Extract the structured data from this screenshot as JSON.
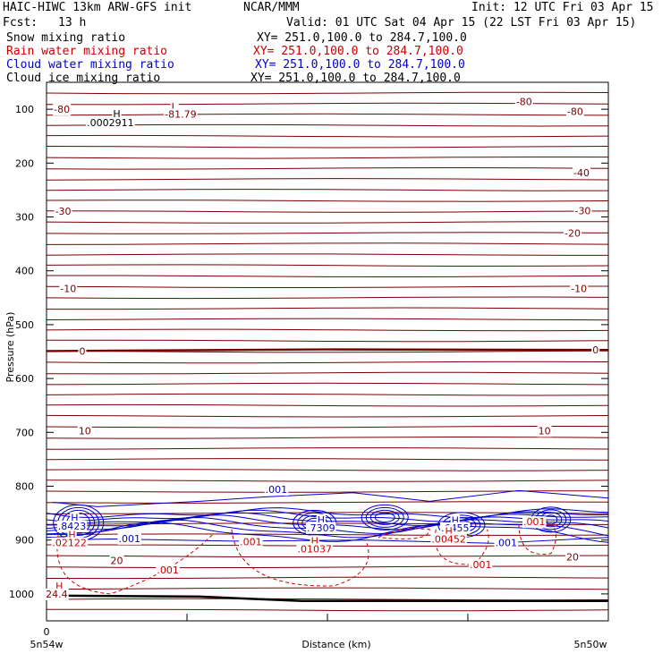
{
  "header": {
    "title": "HAIC-HIWC 13km ARW-GFS init",
    "org": "NCAR/MMM",
    "init": "Init: 12 UTC Fri 03 Apr 15",
    "fcst_label": "Fcst:",
    "fcst_value": "13 h",
    "valid": "Valid: 01 UTC Sat 04 Apr 15 (22 LST Fri 03 Apr 15)"
  },
  "fields": [
    {
      "name": "Snow mixing ratio",
      "xy": "XY= 251.0,100.0 to 284.7,100.0",
      "color": "#000000"
    },
    {
      "name": "Rain water mixing ratio",
      "xy": "XY= 251.0,100.0 to 284.7,100.0",
      "color": "#cc0000"
    },
    {
      "name": "Cloud water mixing ratio",
      "xy": "XY= 251.0,100.0 to 284.7,100.0",
      "color": "#0000cc"
    },
    {
      "name": "Cloud ice mixing ratio",
      "xy": "XY= 251.0,100.0 to 284.7,100.0",
      "color": "#000000"
    }
  ],
  "chart_data": {
    "type": "contour-cross-section",
    "ylabel": "Pressure (hPa)",
    "xlabel": "Distance (km)",
    "xlim": [
      0,
      4.4
    ],
    "ylim": [
      1050,
      50
    ],
    "y_ticks": [
      100,
      200,
      300,
      400,
      500,
      600,
      700,
      800,
      900,
      1000
    ],
    "x_tick_labels": [
      "0"
    ],
    "x_endpoint_labels": [
      "5n54w",
      "5n50w"
    ],
    "colors": {
      "temperature": "#7a0000",
      "rain": "#cc0000",
      "cloud": "#0000cc",
      "ground": "#000000",
      "axis": "#000000"
    },
    "temperature_isotherms_degC": [
      -80,
      -40,
      -30,
      -20,
      -10,
      0,
      10,
      20
    ],
    "temperature_labels": [
      {
        "text": "-80",
        "x": 0.12,
        "y": 100
      },
      {
        "text": "-80",
        "x": 3.74,
        "y": 86
      },
      {
        "text": "-80",
        "x": 4.14,
        "y": 104
      },
      {
        "text": "-40",
        "x": 4.19,
        "y": 218
      },
      {
        "text": "-30",
        "x": 0.13,
        "y": 289
      },
      {
        "text": "-30",
        "x": 4.2,
        "y": 288
      },
      {
        "text": "-20",
        "x": 4.12,
        "y": 330
      },
      {
        "text": "-10",
        "x": 0.17,
        "y": 433
      },
      {
        "text": "-10",
        "x": 4.17,
        "y": 433
      },
      {
        "text": "0",
        "x": 0.28,
        "y": 549
      },
      {
        "text": "0",
        "x": 4.3,
        "y": 547
      },
      {
        "text": "10",
        "x": 0.3,
        "y": 697
      },
      {
        "text": "10",
        "x": 3.9,
        "y": 697
      },
      {
        "text": "20",
        "x": 0.55,
        "y": 938
      },
      {
        "text": "20",
        "x": 4.12,
        "y": 931
      }
    ],
    "annotations": [
      {
        "text": "L",
        "x": 1.0,
        "y": 95,
        "color": "#7a0000"
      },
      {
        "text": "-81.79",
        "x": 1.05,
        "y": 109,
        "color": "#7a0000"
      },
      {
        "text": "H",
        "x": 0.55,
        "y": 108,
        "color": "#000000"
      },
      {
        "text": ".0002911",
        "x": 0.5,
        "y": 125,
        "color": "#000000"
      },
      {
        "text": "H",
        "x": 0.22,
        "y": 858,
        "color": "#0000cc"
      },
      {
        "text": ".8423",
        "x": 0.2,
        "y": 874,
        "color": "#0000cc"
      },
      {
        "text": "H",
        "x": 0.2,
        "y": 890,
        "color": "#cc0000"
      },
      {
        "text": ".02122",
        "x": 0.18,
        "y": 905,
        "color": "#cc0000"
      },
      {
        "text": "H",
        "x": 0.1,
        "y": 985,
        "color": "#cc0000"
      },
      {
        "text": "24.4",
        "x": 0.08,
        "y": 1000,
        "color": "#7a0000"
      },
      {
        "text": "H",
        "x": 2.15,
        "y": 862,
        "color": "#0000cc"
      },
      {
        "text": ".7309",
        "x": 2.15,
        "y": 877,
        "color": "#0000cc"
      },
      {
        "text": "H",
        "x": 2.1,
        "y": 901,
        "color": "#cc0000"
      },
      {
        "text": ".01037",
        "x": 2.1,
        "y": 916,
        "color": "#cc0000"
      },
      {
        "text": "H",
        "x": 3.2,
        "y": 863,
        "color": "#0000cc"
      },
      {
        "text": ".6455",
        "x": 3.2,
        "y": 877,
        "color": "#0000cc"
      },
      {
        "text": "H",
        "x": 3.15,
        "y": 883,
        "color": "#cc0000"
      },
      {
        "text": ".00452",
        "x": 3.15,
        "y": 898,
        "color": "#cc0000"
      },
      {
        "text": ".001",
        "x": 1.8,
        "y": 806,
        "color": "#0000cc"
      },
      {
        "text": ".001",
        "x": 0.65,
        "y": 897,
        "color": "#0000cc"
      },
      {
        "text": ".001",
        "x": 3.6,
        "y": 905,
        "color": "#0000cc"
      },
      {
        "text": ".001",
        "x": 1.6,
        "y": 903,
        "color": "#cc0000"
      },
      {
        "text": ".001",
        "x": 0.95,
        "y": 955,
        "color": "#cc0000"
      },
      {
        "text": ".001",
        "x": 3.4,
        "y": 945,
        "color": "#cc0000"
      },
      {
        "text": ".001",
        "x": 3.82,
        "y": 866,
        "color": "#cc0000"
      }
    ]
  }
}
